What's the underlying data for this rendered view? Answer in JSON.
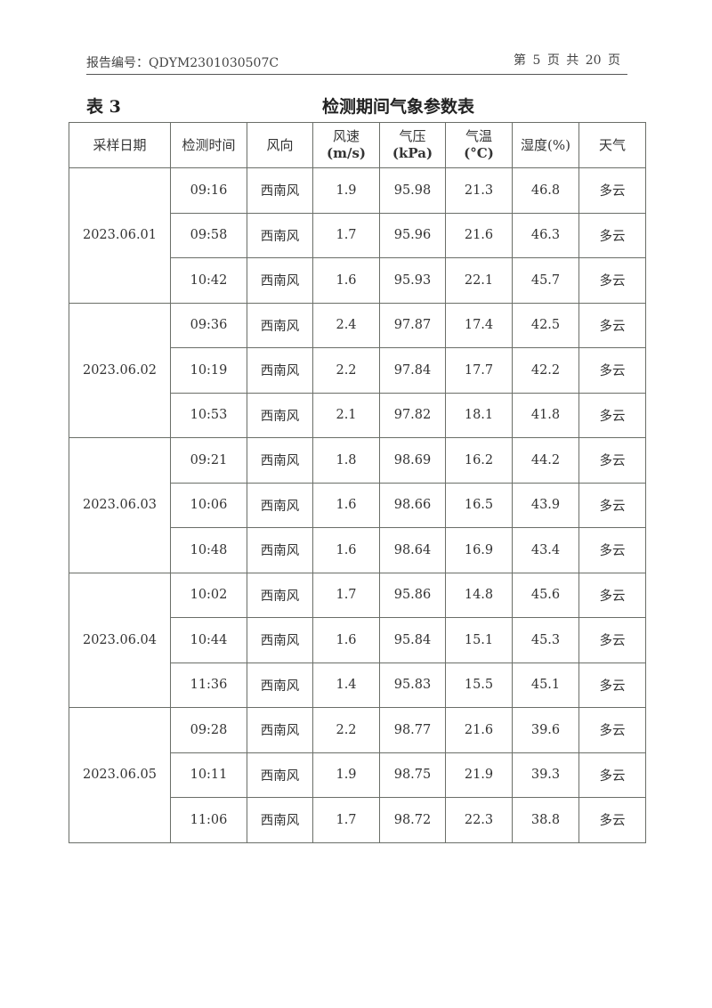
{
  "header": {
    "report_no": "报告编号：QDYM2301030507C",
    "page_info": "第 5 页 共 20 页"
  },
  "table_label": "表 3",
  "table_title": "检测期间气象参数表",
  "columns": [
    {
      "line1": "采样日期",
      "line2": ""
    },
    {
      "line1": "检测时间",
      "line2": ""
    },
    {
      "line1": "风向",
      "line2": ""
    },
    {
      "line1": "风速",
      "line2": "(m/s)"
    },
    {
      "line1": "气压",
      "line2": "(kPa)"
    },
    {
      "line1": "气温",
      "line2": "(°C)"
    },
    {
      "line1": "湿度(%)",
      "line2": ""
    },
    {
      "line1": "天气",
      "line2": ""
    }
  ],
  "groups": [
    {
      "date": "2023.06.01",
      "rows": [
        [
          "09:16",
          "西南风",
          "1.9",
          "95.98",
          "21.3",
          "46.8",
          "多云"
        ],
        [
          "09:58",
          "西南风",
          "1.7",
          "95.96",
          "21.6",
          "46.3",
          "多云"
        ],
        [
          "10:42",
          "西南风",
          "1.6",
          "95.93",
          "22.1",
          "45.7",
          "多云"
        ]
      ]
    },
    {
      "date": "2023.06.02",
      "rows": [
        [
          "09:36",
          "西南风",
          "2.4",
          "97.87",
          "17.4",
          "42.5",
          "多云"
        ],
        [
          "10:19",
          "西南风",
          "2.2",
          "97.84",
          "17.7",
          "42.2",
          "多云"
        ],
        [
          "10:53",
          "西南风",
          "2.1",
          "97.82",
          "18.1",
          "41.8",
          "多云"
        ]
      ]
    },
    {
      "date": "2023.06.03",
      "rows": [
        [
          "09:21",
          "西南风",
          "1.8",
          "98.69",
          "16.2",
          "44.2",
          "多云"
        ],
        [
          "10:06",
          "西南风",
          "1.6",
          "98.66",
          "16.5",
          "43.9",
          "多云"
        ],
        [
          "10:48",
          "西南风",
          "1.6",
          "98.64",
          "16.9",
          "43.4",
          "多云"
        ]
      ]
    },
    {
      "date": "2023.06.04",
      "rows": [
        [
          "10:02",
          "西南风",
          "1.7",
          "95.86",
          "14.8",
          "45.6",
          "多云"
        ],
        [
          "10:44",
          "西南风",
          "1.6",
          "95.84",
          "15.1",
          "45.3",
          "多云"
        ],
        [
          "11:36",
          "西南风",
          "1.4",
          "95.83",
          "15.5",
          "45.1",
          "多云"
        ]
      ]
    },
    {
      "date": "2023.06.05",
      "rows": [
        [
          "09:28",
          "西南风",
          "2.2",
          "98.77",
          "21.6",
          "39.6",
          "多云"
        ],
        [
          "10:11",
          "西南风",
          "1.9",
          "98.75",
          "21.9",
          "39.3",
          "多云"
        ],
        [
          "11:06",
          "西南风",
          "1.7",
          "98.72",
          "22.3",
          "38.8",
          "多云"
        ]
      ]
    }
  ]
}
